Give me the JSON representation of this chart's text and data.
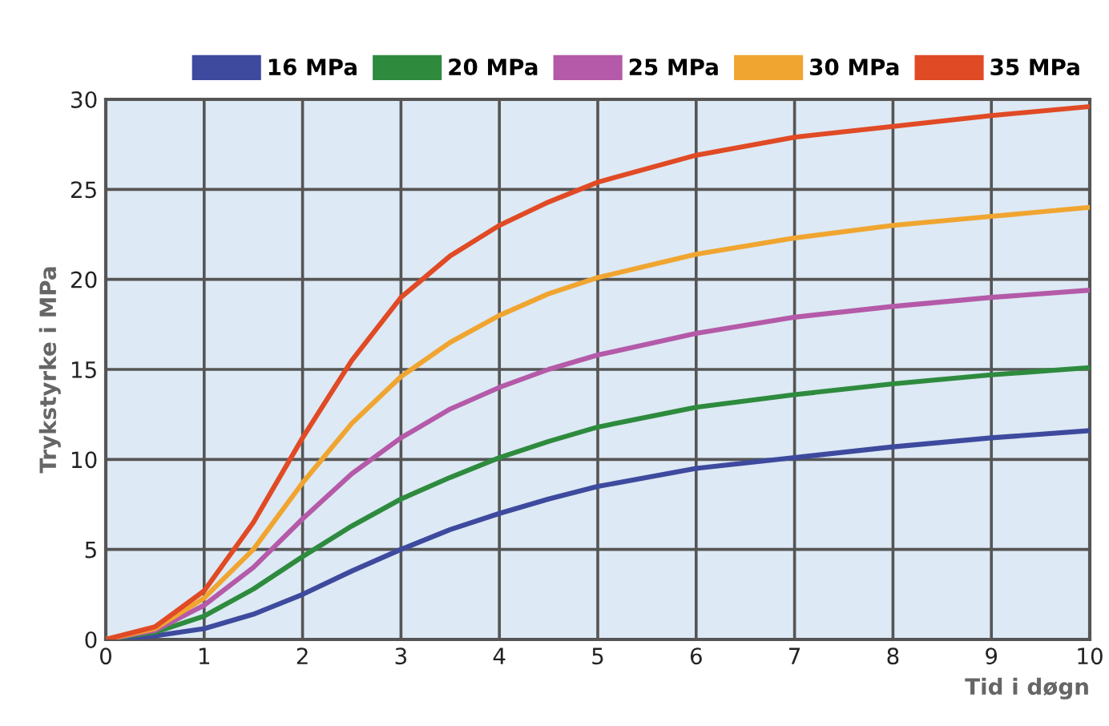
{
  "chart_data": {
    "type": "line",
    "xlabel": "Tid i døgn",
    "ylabel": "Trykstyrke i MPa",
    "x": [
      0,
      0.5,
      1,
      1.5,
      2,
      2.5,
      3,
      3.5,
      4,
      4.5,
      5,
      6,
      7,
      8,
      9,
      10
    ],
    "series": [
      {
        "name": "16 MPa",
        "color": "#3e4a9e",
        "values": [
          0,
          0.2,
          0.6,
          1.4,
          2.5,
          3.8,
          5,
          6.1,
          7,
          7.8,
          8.5,
          9.5,
          10.1,
          10.7,
          11.2,
          11.6
        ]
      },
      {
        "name": "20 MPa",
        "color": "#2e8b3e",
        "values": [
          0,
          0.4,
          1.3,
          2.8,
          4.6,
          6.3,
          7.8,
          9,
          10.1,
          11,
          11.8,
          12.9,
          13.6,
          14.2,
          14.7,
          15.1
        ]
      },
      {
        "name": "25 MPa",
        "color": "#b45aa8",
        "values": [
          0,
          0.5,
          1.9,
          4,
          6.7,
          9.2,
          11.2,
          12.8,
          14,
          15,
          15.8,
          17,
          17.9,
          18.5,
          19,
          19.4
        ]
      },
      {
        "name": "30 MPa",
        "color": "#f0a530",
        "values": [
          0,
          0.6,
          2.3,
          5,
          8.7,
          12,
          14.6,
          16.5,
          18,
          19.2,
          20.1,
          21.4,
          22.3,
          23,
          23.5,
          24
        ]
      },
      {
        "name": "35 MPa",
        "color": "#e04a25",
        "values": [
          0,
          0.7,
          2.7,
          6.5,
          11.2,
          15.5,
          19,
          21.3,
          23,
          24.3,
          25.4,
          26.9,
          27.9,
          28.5,
          29.1,
          29.6
        ]
      }
    ],
    "xlim": [
      0,
      10
    ],
    "ylim": [
      0,
      30
    ],
    "xticks": [
      0,
      1,
      2,
      3,
      4,
      5,
      6,
      7,
      8,
      9,
      10
    ],
    "yticks": [
      0,
      5,
      10,
      15,
      20,
      25,
      30
    ],
    "grid": true,
    "legend": "top",
    "marker": "none",
    "line_style": "solid"
  }
}
